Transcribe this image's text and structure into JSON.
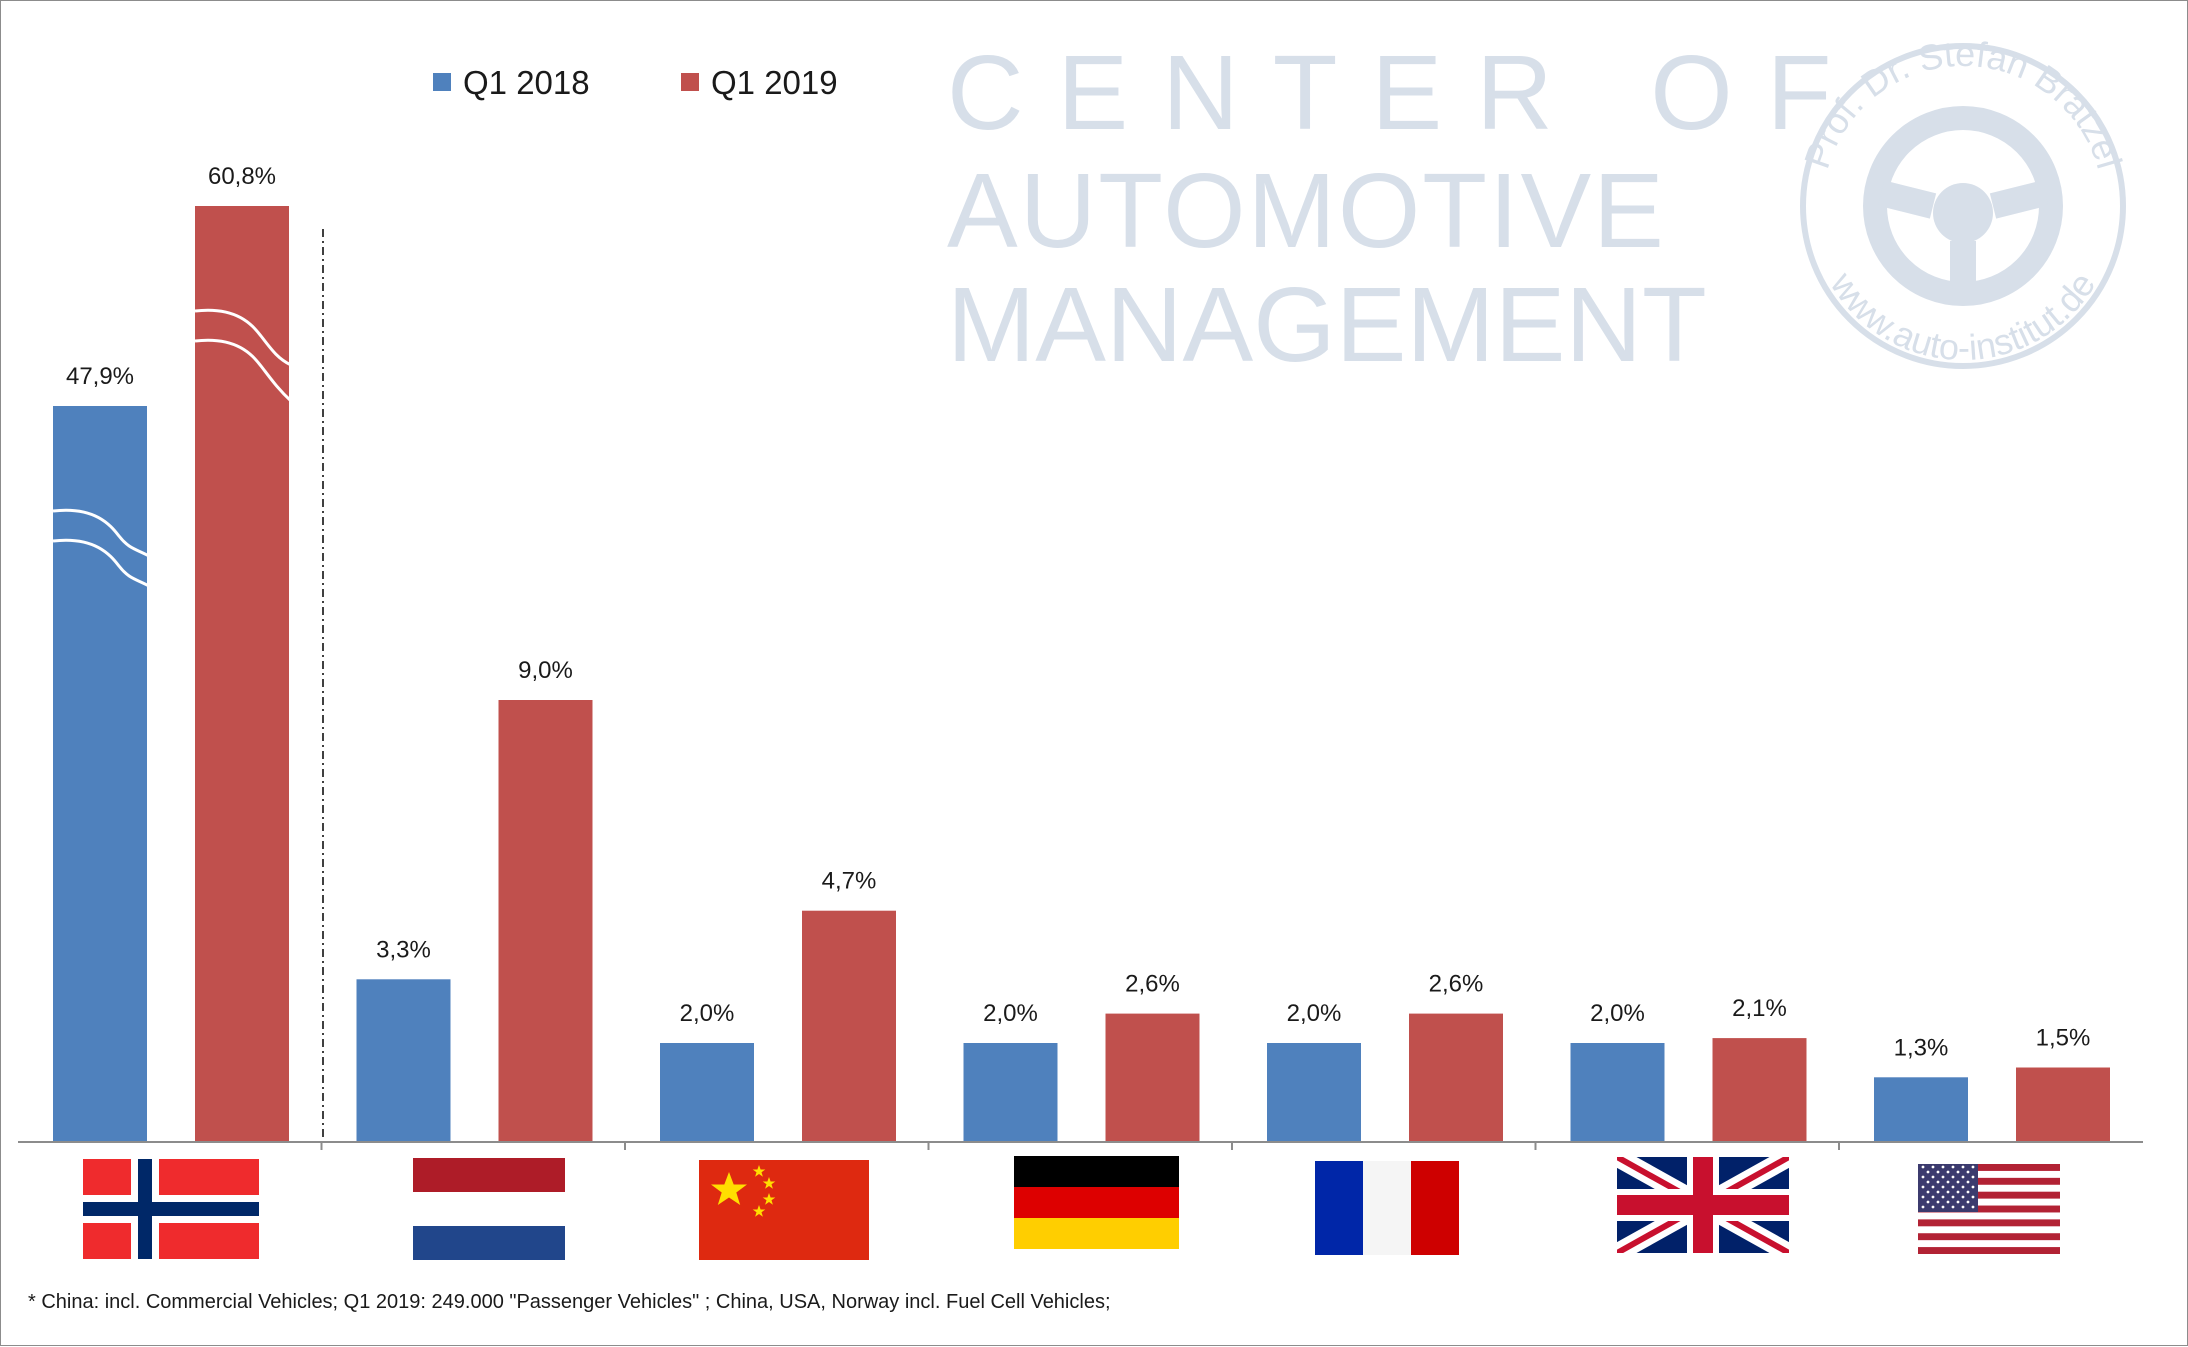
{
  "chart_data": {
    "type": "bar",
    "categories": [
      "Norway",
      "Netherlands",
      "China",
      "Germany",
      "France",
      "United Kingdom",
      "USA"
    ],
    "series": [
      {
        "name": "Q1 2018",
        "color": "#4f81bd",
        "values": [
          47.9,
          3.3,
          2.0,
          2.0,
          2.0,
          2.0,
          1.3
        ],
        "labels": [
          "47,9%",
          "3,3%",
          "2,0%",
          "2,0%",
          "2,0%",
          "2,0%",
          "1,3%"
        ]
      },
      {
        "name": "Q1 2019",
        "color": "#c0504d",
        "values": [
          60.8,
          9.0,
          4.7,
          2.6,
          2.6,
          2.1,
          1.5
        ],
        "labels": [
          "60,8%",
          "9,0%",
          "4,7%",
          "2,6%",
          "2,6%",
          "2,1%",
          "1,5%"
        ]
      }
    ],
    "broken_axis": true,
    "category_icons": [
      "norway-flag-icon",
      "netherlands-flag-icon",
      "china-flag-icon",
      "germany-flag-icon",
      "france-flag-icon",
      "uk-flag-icon",
      "usa-flag-icon"
    ],
    "legend_position": "top-left",
    "grid": false
  },
  "watermark": {
    "line1": "CENTER OF",
    "line2": "AUTOMOTIVE",
    "line3": "MANAGEMENT",
    "seal_top": "Prof. Dr. Stefan Bratzel",
    "seal_bottom": "www.auto-institut.de"
  },
  "footnote": "* China: incl. Commercial Vehicles; Q1 2019: 249.000 \"Passenger Vehicles\" ; China, USA, Norway incl. Fuel Cell Vehicles;"
}
